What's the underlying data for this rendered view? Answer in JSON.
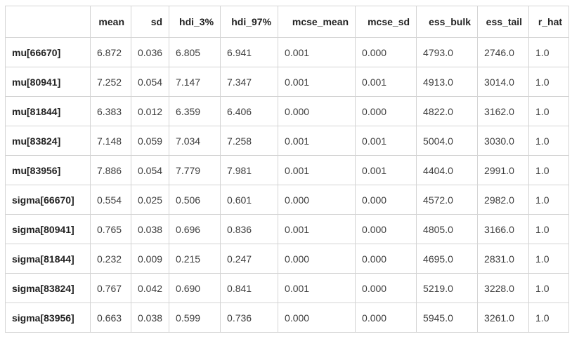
{
  "colors": {
    "background": "#ffffff",
    "border": "#d4d4d4",
    "header_text": "#222222",
    "cell_text": "#3d3d3d"
  },
  "chart_data": {
    "type": "table",
    "title": "",
    "index_header": "",
    "columns": [
      "mean",
      "sd",
      "hdi_3%",
      "hdi_97%",
      "mcse_mean",
      "mcse_sd",
      "ess_bulk",
      "ess_tail",
      "r_hat"
    ],
    "index": [
      "mu[66670]",
      "mu[80941]",
      "mu[81844]",
      "mu[83824]",
      "mu[83956]",
      "sigma[66670]",
      "sigma[80941]",
      "sigma[81844]",
      "sigma[83824]",
      "sigma[83956]"
    ],
    "rows": [
      [
        "6.872",
        "0.036",
        "6.805",
        "6.941",
        "0.001",
        "0.000",
        "4793.0",
        "2746.0",
        "1.0"
      ],
      [
        "7.252",
        "0.054",
        "7.147",
        "7.347",
        "0.001",
        "0.001",
        "4913.0",
        "3014.0",
        "1.0"
      ],
      [
        "6.383",
        "0.012",
        "6.359",
        "6.406",
        "0.000",
        "0.000",
        "4822.0",
        "3162.0",
        "1.0"
      ],
      [
        "7.148",
        "0.059",
        "7.034",
        "7.258",
        "0.001",
        "0.001",
        "5004.0",
        "3030.0",
        "1.0"
      ],
      [
        "7.886",
        "0.054",
        "7.779",
        "7.981",
        "0.001",
        "0.001",
        "4404.0",
        "2991.0",
        "1.0"
      ],
      [
        "0.554",
        "0.025",
        "0.506",
        "0.601",
        "0.000",
        "0.000",
        "4572.0",
        "2982.0",
        "1.0"
      ],
      [
        "0.765",
        "0.038",
        "0.696",
        "0.836",
        "0.001",
        "0.000",
        "4805.0",
        "3166.0",
        "1.0"
      ],
      [
        "0.232",
        "0.009",
        "0.215",
        "0.247",
        "0.000",
        "0.000",
        "4695.0",
        "2831.0",
        "1.0"
      ],
      [
        "0.767",
        "0.042",
        "0.690",
        "0.841",
        "0.001",
        "0.000",
        "5219.0",
        "3228.0",
        "1.0"
      ],
      [
        "0.663",
        "0.038",
        "0.599",
        "0.736",
        "0.000",
        "0.000",
        "5945.0",
        "3261.0",
        "1.0"
      ]
    ]
  }
}
